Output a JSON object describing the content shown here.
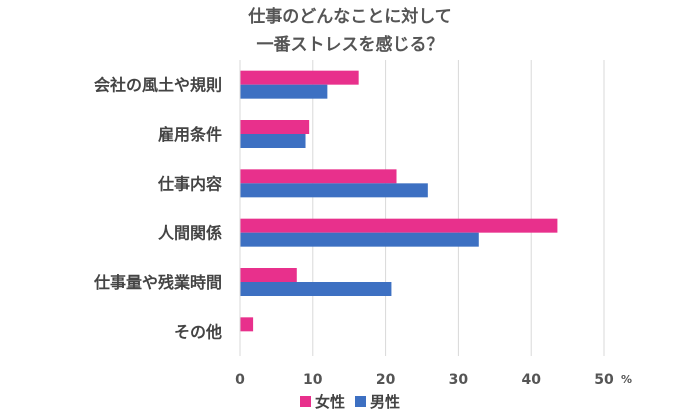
{
  "chart_data": {
    "type": "bar",
    "orientation": "horizontal",
    "title_lines": [
      "仕事のどんなことに対して",
      "一番ストレスを感じる？"
    ],
    "categories": [
      "会社の風土や規則",
      "雇用条件",
      "仕事内容",
      "人間関係",
      "仕事量や残業時間",
      "その他"
    ],
    "series": [
      {
        "name": "女性",
        "color": "#e8308c",
        "values": [
          16.3,
          9.5,
          21.5,
          43.6,
          7.8,
          1.8
        ]
      },
      {
        "name": "男性",
        "color": "#3d70c2",
        "values": [
          12.0,
          9.0,
          25.8,
          32.8,
          20.8,
          0
        ]
      }
    ],
    "x_ticks": [
      "0",
      "10",
      "20",
      "30",
      "40",
      "50"
    ],
    "x_unit": "%",
    "xlim": [
      0,
      50
    ],
    "grid": true,
    "legend_position": "bottom"
  }
}
